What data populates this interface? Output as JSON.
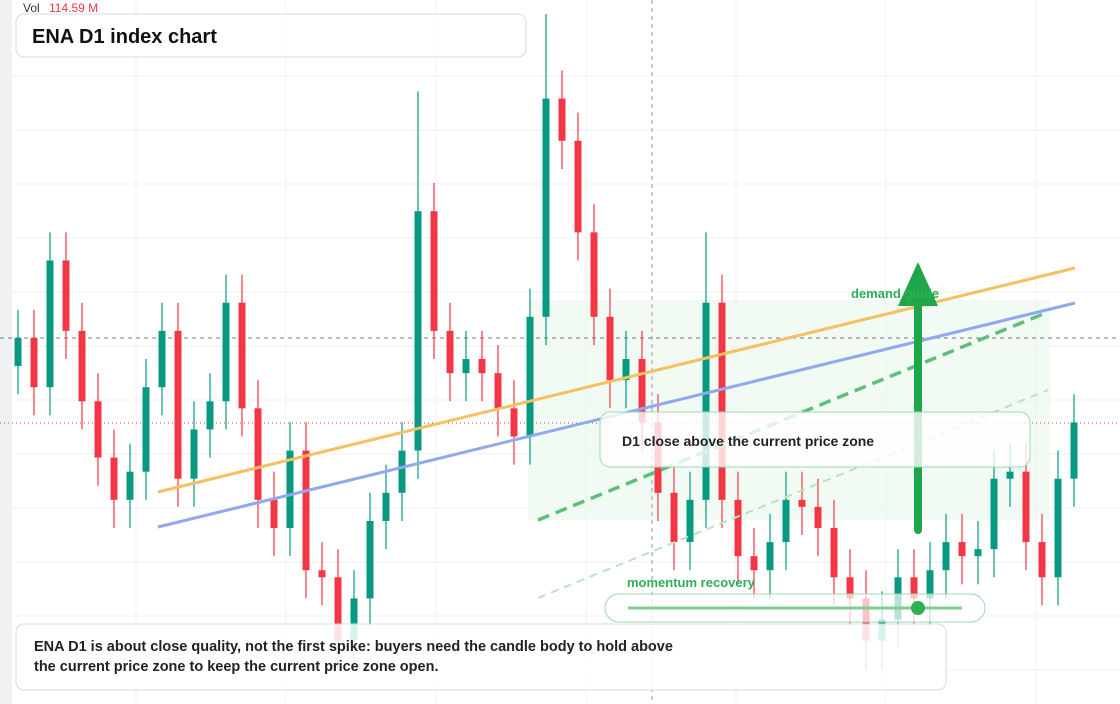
{
  "chart_data": {
    "type": "candlestick",
    "title": "ENA D1 index chart",
    "volume_label": "Vol",
    "volume_value": "114.59 M",
    "ylim": [
      0,
      100
    ],
    "up_color": "#089981",
    "down_color": "#f23645",
    "open": [
      48,
      52,
      45,
      63,
      53,
      43,
      35,
      29,
      33,
      45,
      53,
      32,
      39,
      43,
      57,
      42,
      29,
      25,
      36,
      19,
      18,
      9,
      15,
      26,
      30,
      36,
      70,
      53,
      47,
      49,
      47,
      42,
      38,
      55,
      86,
      80,
      67,
      55,
      46,
      49,
      40,
      30,
      23,
      29,
      57,
      29,
      21,
      19,
      23,
      29,
      28,
      25,
      18,
      15,
      9,
      12,
      18,
      15,
      19,
      23,
      21,
      22,
      32,
      33,
      23,
      18,
      32
    ],
    "high": [
      56,
      56,
      67,
      67,
      57,
      47,
      39,
      37,
      49,
      57,
      57,
      43,
      47,
      61,
      61,
      46,
      33,
      40,
      40,
      23,
      22,
      19,
      30,
      34,
      40,
      87,
      74,
      57,
      53,
      53,
      51,
      46,
      59,
      98,
      90,
      84,
      71,
      59,
      53,
      53,
      44,
      34,
      33,
      67,
      61,
      33,
      25,
      27,
      33,
      33,
      32,
      29,
      22,
      19,
      16,
      22,
      22,
      23,
      27,
      27,
      26,
      36,
      37,
      37,
      27,
      36,
      44
    ],
    "low": [
      44,
      41,
      41,
      49,
      39,
      31,
      25,
      25,
      29,
      41,
      28,
      28,
      35,
      39,
      38,
      25,
      21,
      21,
      15,
      14,
      5,
      5,
      11,
      22,
      26,
      32,
      49,
      43,
      43,
      43,
      38,
      34,
      34,
      51,
      76,
      63,
      51,
      42,
      42,
      36,
      26,
      19,
      19,
      25,
      25,
      17,
      15,
      15,
      19,
      24,
      21,
      14,
      11,
      5,
      5,
      8,
      11,
      11,
      15,
      17,
      17,
      18,
      28,
      19,
      14,
      14,
      28
    ],
    "close": [
      52,
      45,
      63,
      53,
      43,
      35,
      29,
      33,
      45,
      53,
      32,
      39,
      43,
      57,
      42,
      29,
      25,
      36,
      19,
      18,
      9,
      15,
      26,
      30,
      36,
      70,
      53,
      47,
      49,
      47,
      42,
      38,
      55,
      86,
      80,
      67,
      55,
      46,
      49,
      40,
      30,
      23,
      29,
      57,
      29,
      21,
      19,
      23,
      29,
      28,
      25,
      18,
      15,
      9,
      12,
      18,
      15,
      19,
      23,
      21,
      22,
      32,
      33,
      23,
      18,
      32,
      40
    ],
    "annotations": {
      "demand_guide": "demand guide",
      "close_zone": "D1 close above the current price zone",
      "momentum": "momentum recovery",
      "note": "ENA D1 is about close quality, not the first spike: buyers need the candle body to hold above the current price zone to keep the current price zone open."
    }
  }
}
